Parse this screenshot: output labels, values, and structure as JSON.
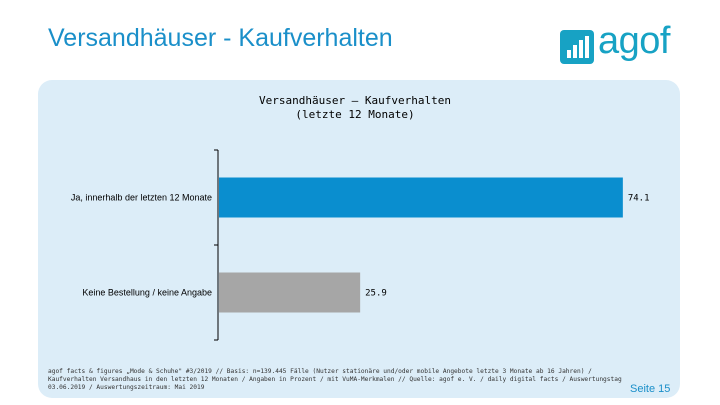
{
  "header": {
    "title": "Versandhäuser - Kaufverhalten",
    "logo_text": "agof",
    "logo_color": "#17a2c4",
    "title_color": "#1a8fc9"
  },
  "chart_data": {
    "type": "bar",
    "orientation": "horizontal",
    "title": "Versandhäuser – Kaufverhalten",
    "subtitle": "(letzte 12 Monate)",
    "categories": [
      "Ja, innerhalb der letzten 12 Monate",
      "Keine Bestellung / keine Angabe"
    ],
    "values": [
      74.1,
      25.9
    ],
    "value_labels": [
      "74.1",
      "25.9"
    ],
    "colors": [
      "#0a8ecf",
      "#a6a6a6"
    ],
    "xlim": [
      0,
      100
    ],
    "grid": false,
    "legend": "none"
  },
  "footer": {
    "source_lines": [
      "agof facts & figures „Mode & Schuhe\" #3/2019 // Basis: n=139.445 Fälle (Nutzer stationäre und/oder mobile Angebote letzte 3 Monate ab 16 Jahren) /",
      "Kaufverhalten Versandhaus in den letzten 12 Monaten / Angaben in Prozent / mit VuMA-Merkmalen // Quelle: agof e. V. / daily digital facts / Auswertungstag",
      "03.06.2019 / Auswertungszeitraum: Mai 2019"
    ],
    "page_number": "Seite 15"
  }
}
